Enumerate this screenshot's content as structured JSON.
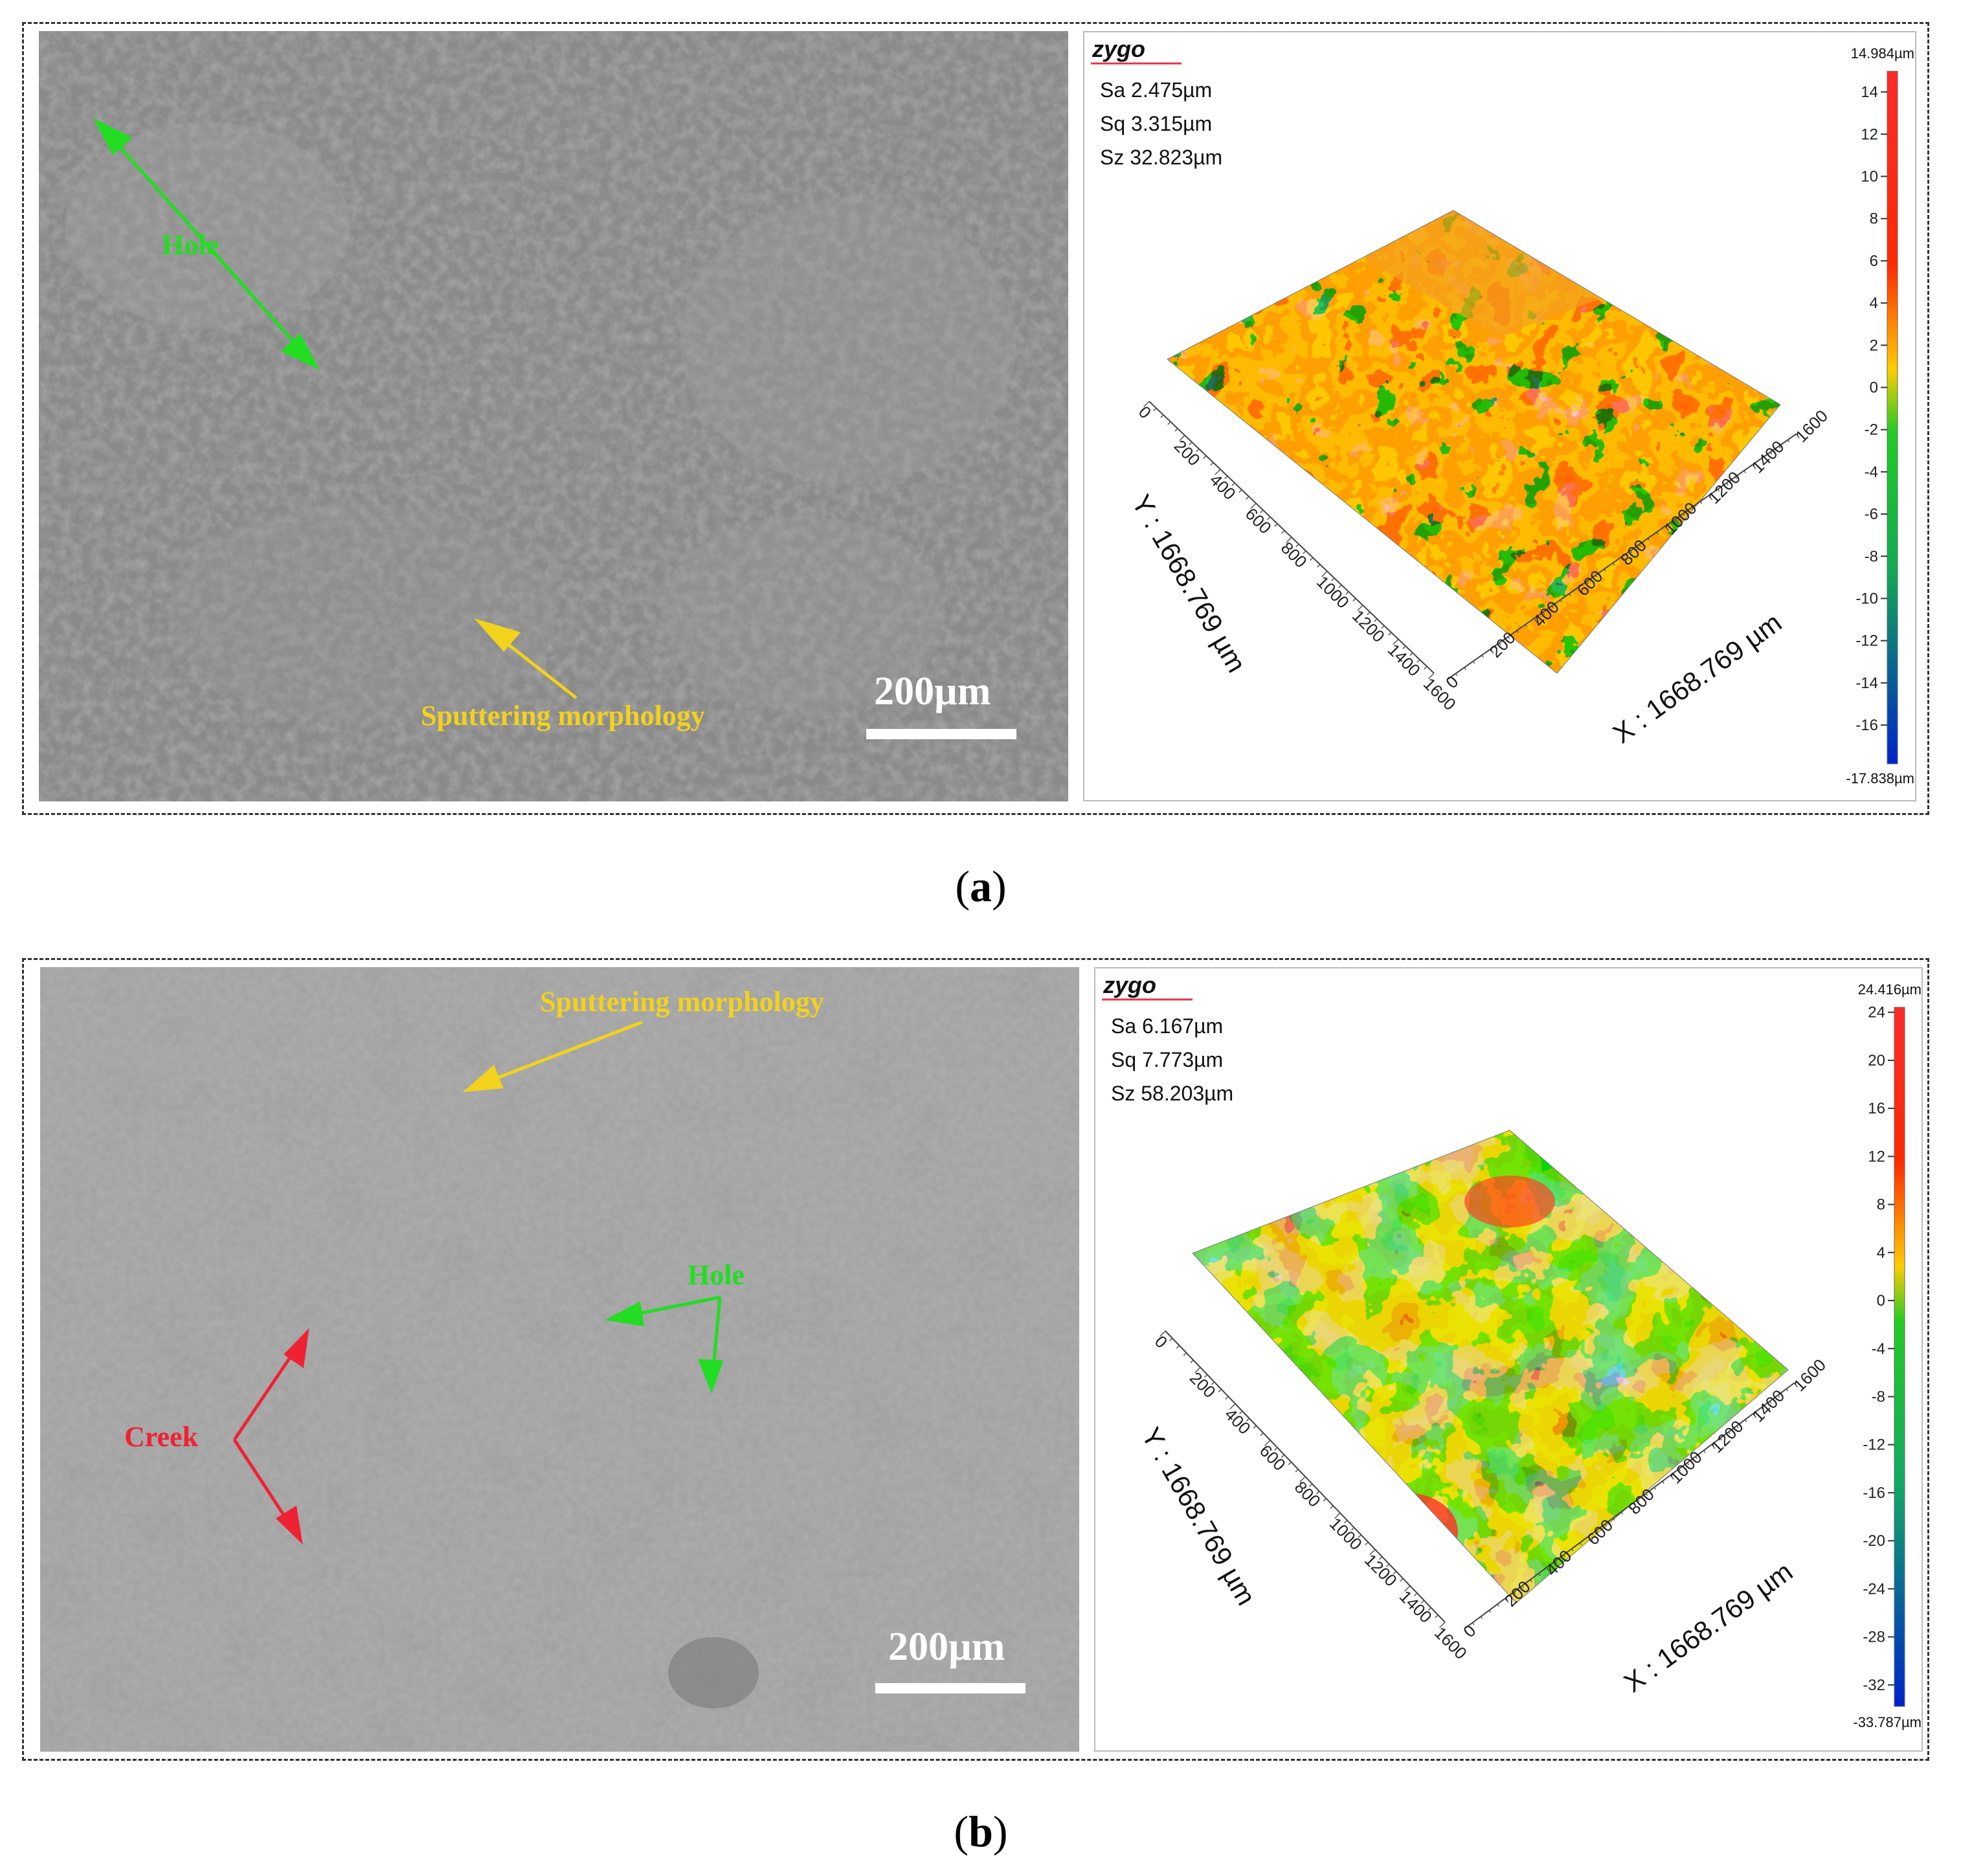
{
  "panels": [
    {
      "label": "a",
      "sem": {
        "scale_bar": "200µm",
        "annotations": [
          {
            "text": "Hole",
            "color": "#22dd22"
          },
          {
            "text": "Sputtering morphology",
            "color": "#f2d21c"
          }
        ]
      },
      "profile": {
        "logo": "zygo",
        "stats": [
          "Sa 2.475µm",
          "Sq 3.315µm",
          "Sz 32.823µm"
        ],
        "colorbar": {
          "max_label": "14.984µm",
          "min_label": "-17.838µm",
          "max": 14.984,
          "min": -17.838,
          "ticks": [
            14,
            12,
            10,
            8,
            6,
            4,
            2,
            0,
            -2,
            -4,
            -6,
            -8,
            -10,
            -12,
            -14,
            -16
          ]
        },
        "y_axis_label": "Y : 1668.769 µm",
        "x_axis_label": "X : 1668.769 µm",
        "y_ticks": [
          "0",
          "200",
          "400",
          "600",
          "800",
          "1000",
          "1200",
          "1400",
          "1600"
        ],
        "x_ticks": [
          "0",
          "200",
          "400",
          "600",
          "800",
          "1000",
          "1200",
          "1400",
          "1600"
        ]
      }
    },
    {
      "label": "b",
      "sem": {
        "scale_bar": "200µm",
        "annotations": [
          {
            "text": "Sputtering morphology",
            "color": "#f2d21c"
          },
          {
            "text": "Hole",
            "color": "#22dd22"
          },
          {
            "text": "Creek",
            "color": "#ee2233"
          }
        ]
      },
      "profile": {
        "logo": "zygo",
        "stats": [
          "Sa 6.167µm",
          "Sq 7.773µm",
          "Sz 58.203µm"
        ],
        "colorbar": {
          "max_label": "24.416µm",
          "min_label": "-33.787µm",
          "max": 24.416,
          "min": -33.787,
          "ticks": [
            24,
            20,
            16,
            12,
            8,
            4,
            0,
            -4,
            -8,
            -12,
            -16,
            -20,
            -24,
            -28,
            -32
          ]
        },
        "y_axis_label": "Y : 1668.769 µm",
        "x_axis_label": "X : 1668.769 µm",
        "y_ticks": [
          "0",
          "200",
          "400",
          "600",
          "800",
          "1000",
          "1200",
          "1400",
          "1600"
        ],
        "x_ticks": [
          "0",
          "200",
          "400",
          "600",
          "800",
          "1000",
          "1200",
          "1400",
          "1600"
        ]
      }
    }
  ]
}
